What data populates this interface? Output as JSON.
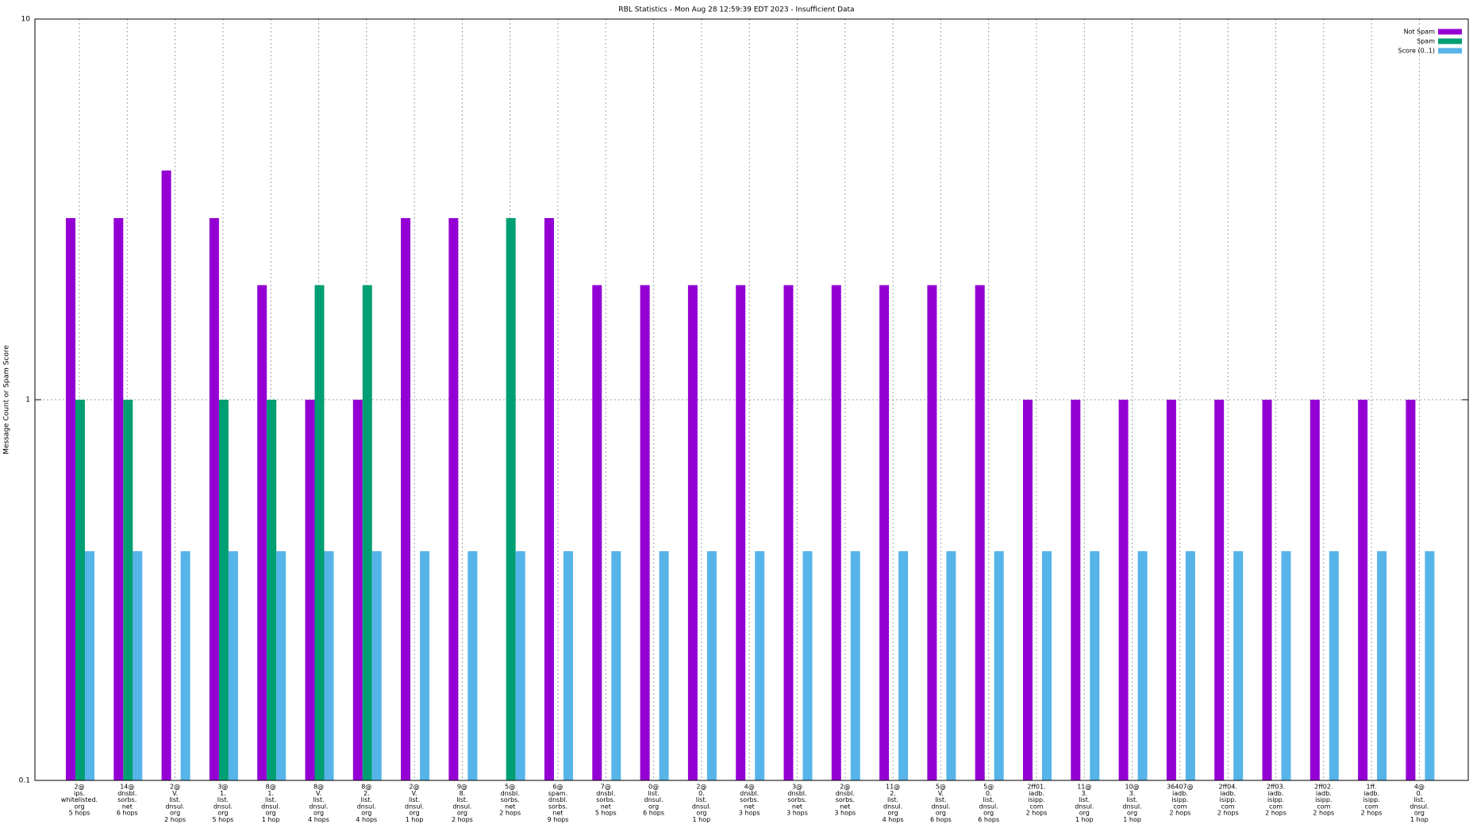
{
  "chart_data": {
    "type": "bar",
    "title": "RBL Statistics - Mon Aug 28 12:59:39 EDT 2023 - Insufficient Data",
    "y_label": "Message Count or Spam Score",
    "log_scale": true,
    "grid": true,
    "legend_position": "top-right",
    "ylim": [
      0.1,
      10
    ],
    "yticks": [
      0.1,
      1,
      10
    ],
    "categories": [
      [
        "2@",
        "ips.",
        "whitelisted.",
        "org",
        "5 hops"
      ],
      [
        "14@",
        "dnsbl.",
        "sorbs.",
        "net",
        "6 hops"
      ],
      [
        "2@",
        "V.",
        "list.",
        "dnsul.",
        "org",
        "2 hops"
      ],
      [
        "3@",
        "1.",
        "list.",
        "dnsul.",
        "org",
        "5 hops"
      ],
      [
        "8@",
        "1.",
        "list.",
        "dnsul.",
        "org",
        "1 hop"
      ],
      [
        "8@",
        "V.",
        "list.",
        "dnsul.",
        "org",
        "4 hops"
      ],
      [
        "8@",
        "2.",
        "list.",
        "dnsul.",
        "org",
        "4 hops"
      ],
      [
        "2@",
        "V.",
        "list.",
        "dnsul.",
        "org",
        "1 hop"
      ],
      [
        "9@",
        "8.",
        "list.",
        "dnsul.",
        "org",
        "2 hops"
      ],
      [
        "5@",
        "dnsbl.",
        "sorbs.",
        "net",
        "2 hops"
      ],
      [
        "6@",
        "spam.",
        "dnsbl.",
        "sorbs.",
        "net",
        "9 hops"
      ],
      [
        "7@",
        "dnsbl.",
        "sorbs.",
        "net",
        "5 hops"
      ],
      [
        "0@",
        "list.",
        "dnsul.",
        "org",
        "6 hops"
      ],
      [
        "2@",
        "0.",
        "list.",
        "dnsul.",
        "org",
        "1 hop"
      ],
      [
        "4@",
        "dnsbl.",
        "sorbs.",
        "net",
        "3 hops"
      ],
      [
        "3@",
        "dnsbl.",
        "sorbs.",
        "net",
        "3 hops"
      ],
      [
        "2@",
        "dnsbl.",
        "sorbs.",
        "net",
        "3 hops"
      ],
      [
        "11@",
        "2.",
        "list.",
        "dnsul.",
        "org",
        "4 hops"
      ],
      [
        "5@",
        "V.",
        "list.",
        "dnsul.",
        "org",
        "6 hops"
      ],
      [
        "5@",
        "0.",
        "list.",
        "dnsul.",
        "org",
        "6 hops"
      ],
      [
        "2ff01.",
        "iadb.",
        "isipp.",
        "com",
        "2 hops"
      ],
      [
        "11@",
        "3.",
        "list.",
        "dnsul.",
        "org",
        "1 hop"
      ],
      [
        "10@",
        "3.",
        "list.",
        "dnsul.",
        "org",
        "1 hop"
      ],
      [
        "36407@",
        "iadb.",
        "isipp.",
        "com",
        "2 hops"
      ],
      [
        "2ff04.",
        "iadb.",
        "isipp.",
        "com",
        "2 hops"
      ],
      [
        "2ff03.",
        "iadb.",
        "isipp.",
        "com",
        "2 hops"
      ],
      [
        "2ff02.",
        "iadb.",
        "isipp.",
        "com",
        "2 hops"
      ],
      [
        "1ff.",
        "iadb.",
        "isipp.",
        "com",
        "2 hops"
      ],
      [
        "4@",
        "0.",
        "list.",
        "dnsul.",
        "org",
        "1 hop"
      ]
    ],
    "series": [
      {
        "name": "Not Spam",
        "color": "#9400d3",
        "values": [
          3,
          3,
          4,
          3,
          2,
          1,
          1,
          3,
          3,
          null,
          3,
          2,
          2,
          2,
          2,
          2,
          2,
          2,
          2,
          2,
          1,
          1,
          1,
          1,
          1,
          1,
          1,
          1,
          1
        ]
      },
      {
        "name": "Spam",
        "color": "#009e73",
        "values": [
          1,
          1,
          null,
          1,
          1,
          2,
          2,
          null,
          null,
          3,
          null,
          null,
          null,
          null,
          null,
          null,
          null,
          null,
          null,
          null,
          null,
          null,
          null,
          null,
          null,
          null,
          null,
          null,
          null
        ]
      },
      {
        "name": "Score (0..1)",
        "color": "#56b4e9",
        "values": [
          0.4,
          0.4,
          0.4,
          0.4,
          0.4,
          0.4,
          0.4,
          0.4,
          0.4,
          0.4,
          0.4,
          0.4,
          0.4,
          0.4,
          0.4,
          0.4,
          0.4,
          0.4,
          0.4,
          0.4,
          0.4,
          0.4,
          0.4,
          0.4,
          0.4,
          0.4,
          0.4,
          0.4,
          0.4
        ]
      }
    ]
  }
}
